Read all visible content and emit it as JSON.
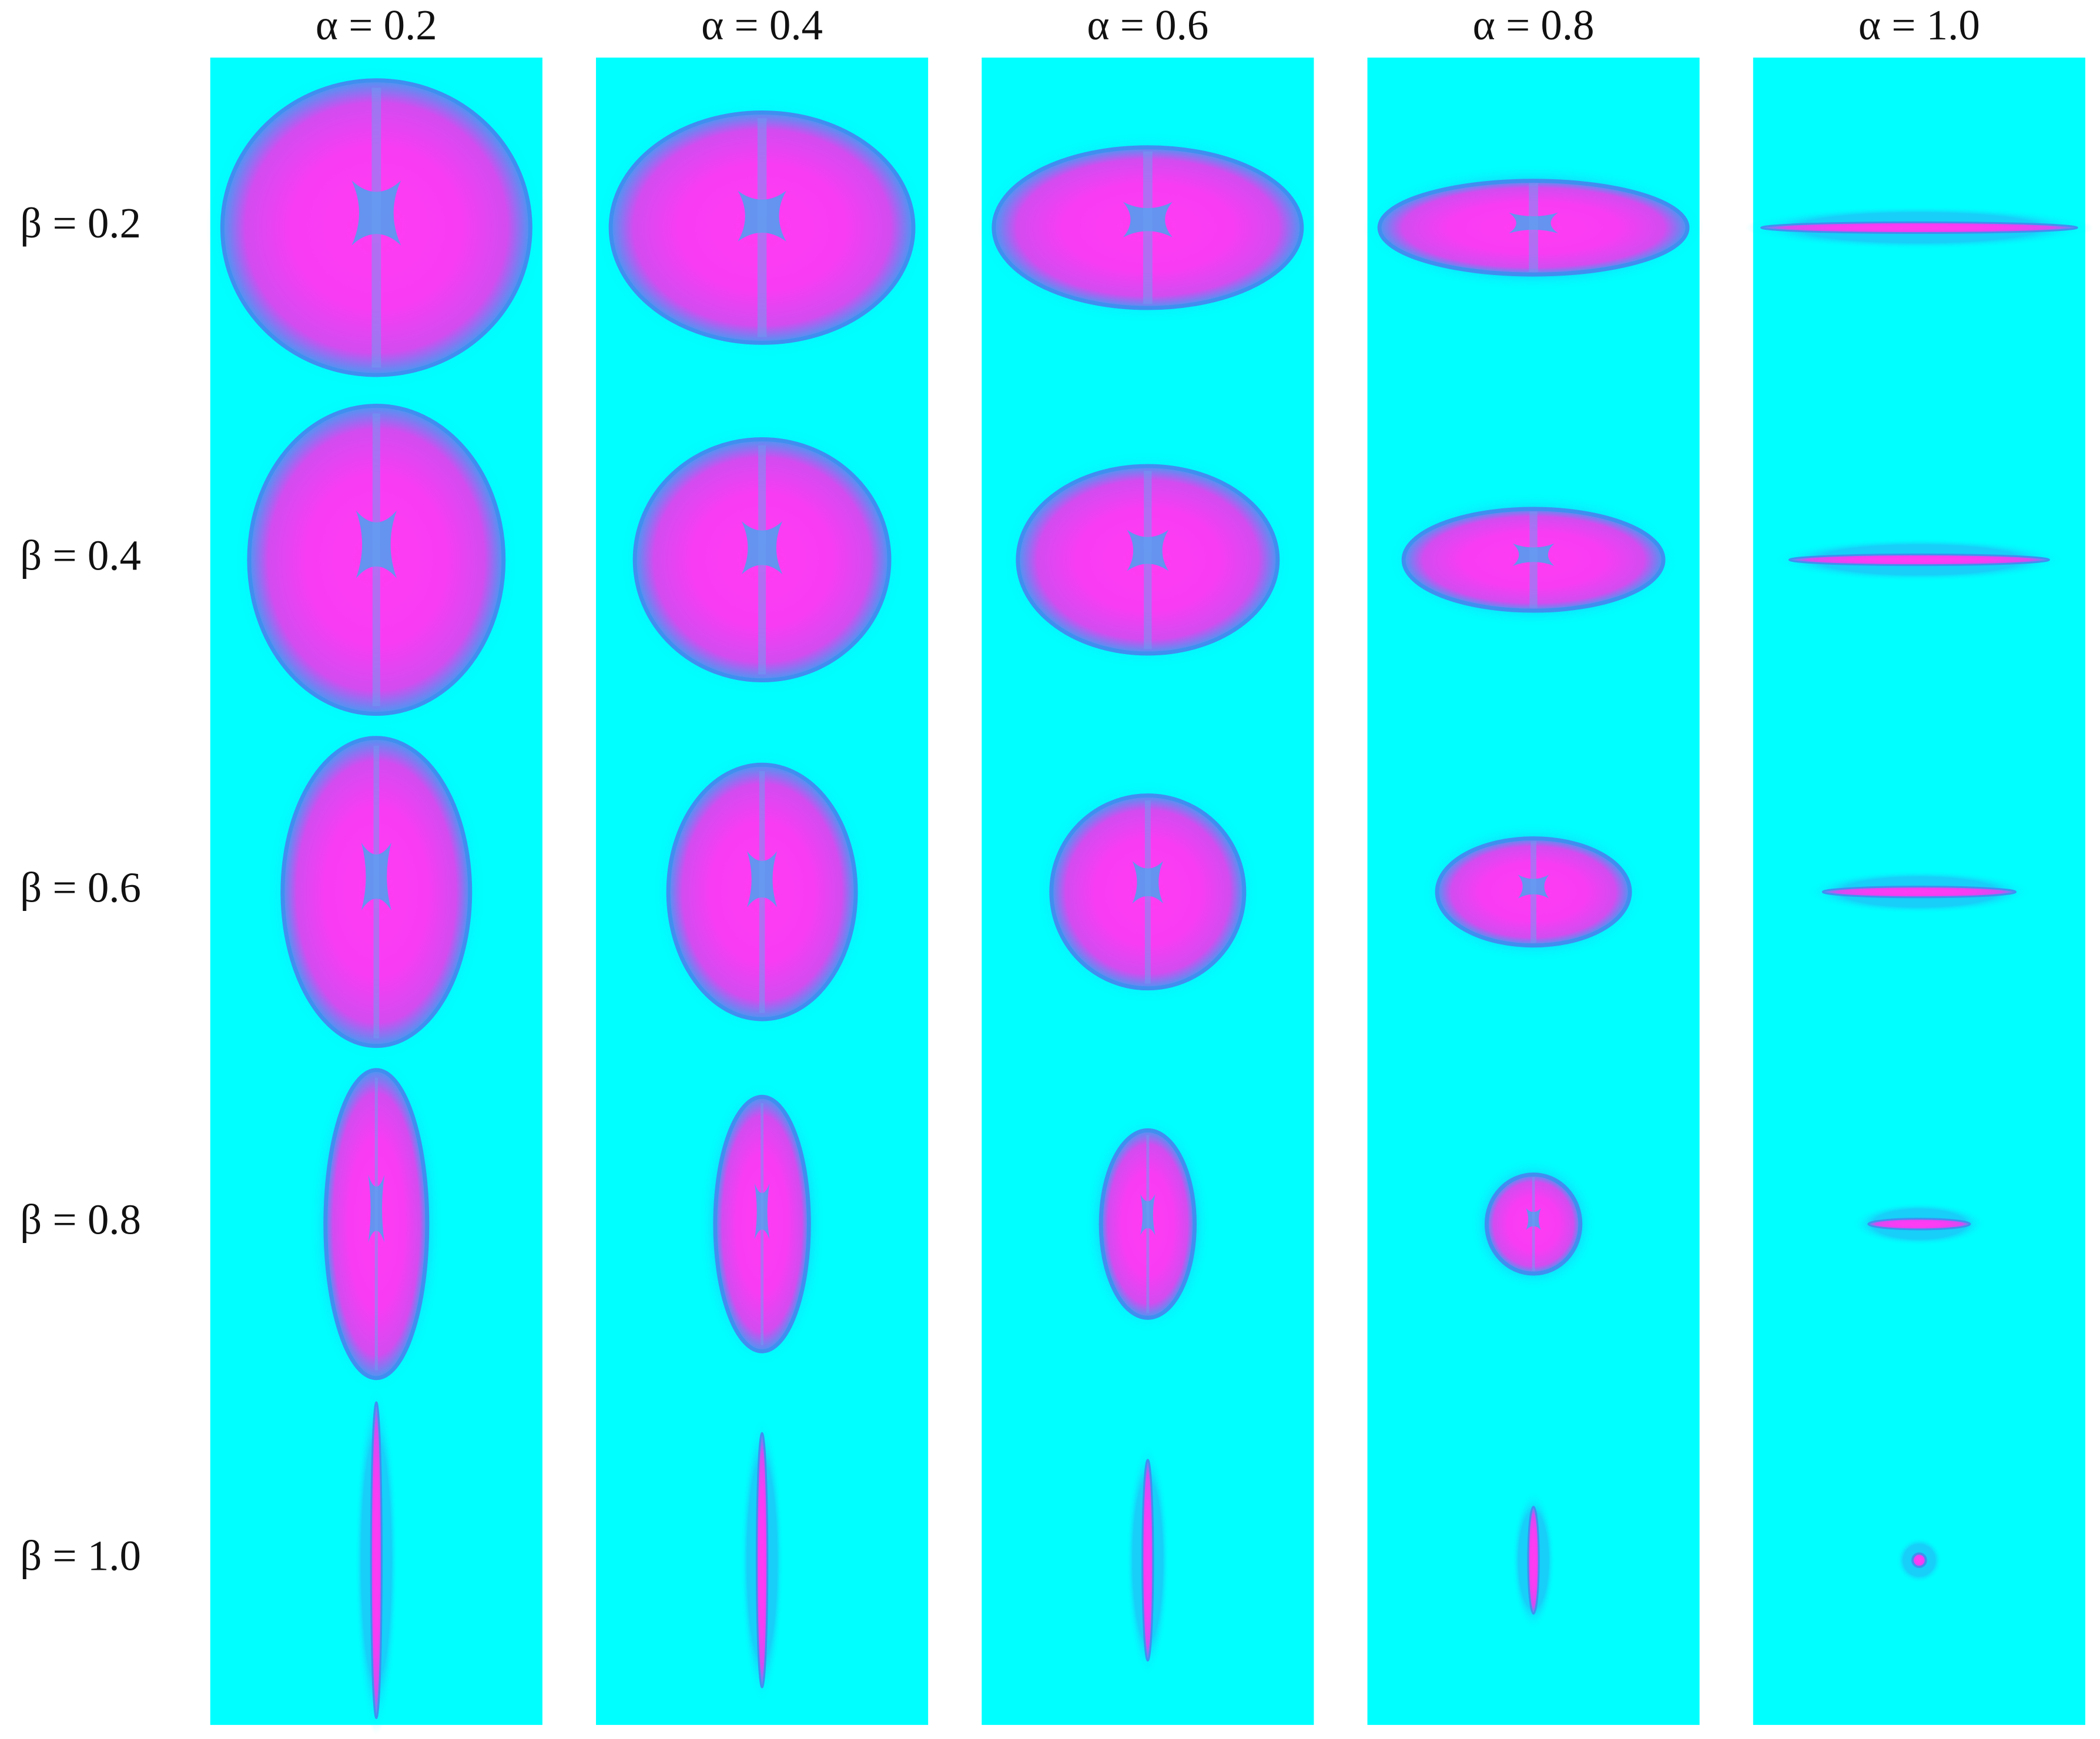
{
  "figure": {
    "column_headers": [
      "α = 0.2",
      "α = 0.4",
      "α = 0.6",
      "α = 0.8",
      "α = 1.0"
    ],
    "row_labels": [
      "β = 0.2",
      "β = 0.4",
      "β = 0.6",
      "β = 0.8",
      "β = 1.0"
    ]
  }
}
